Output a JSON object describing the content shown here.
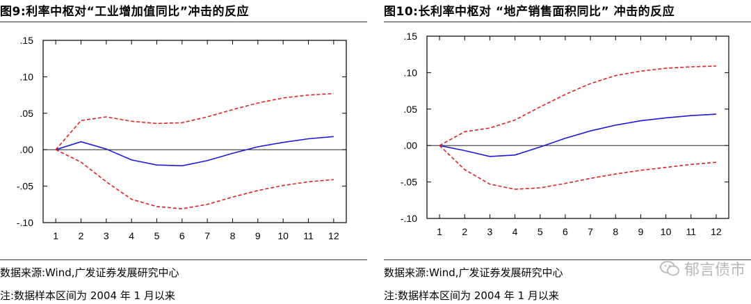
{
  "panels": [
    {
      "title": "图9:利率中枢对“工业增加值同比”冲击的反应",
      "source": "数据来源:Wind,广发证券发展研究中心",
      "note": "注:数据样本区间为 2004 年 1 月以来"
    },
    {
      "title": "图10:长利率中枢对 “地产销售面积同比” 冲击的反应",
      "source": "数据来源:Wind,广发证券发展研究中心",
      "note": "注:数据样本区间为 2004 年 1 月以来"
    }
  ],
  "watermark": {
    "text": "郁言债市"
  },
  "chart_data": [
    {
      "type": "line",
      "title": "利率中枢对“工业增加值同比”冲击的反应",
      "x": [
        1,
        2,
        3,
        4,
        5,
        6,
        7,
        8,
        9,
        10,
        11,
        12
      ],
      "ylim": [
        -0.1,
        0.15
      ],
      "yticks": [
        0.15,
        0.1,
        0.05,
        0.0,
        -0.05,
        -0.1
      ],
      "ytick_labels": [
        ".15",
        ".10",
        ".05",
        ".00",
        "-.05",
        "-.10"
      ],
      "series": [
        {
          "name": "response",
          "style": "solid",
          "color": "#1a1adb",
          "values": [
            0.0,
            0.011,
            0.001,
            -0.014,
            -0.021,
            -0.022,
            -0.015,
            -0.005,
            0.004,
            0.01,
            0.015,
            0.018
          ]
        },
        {
          "name": "upper band",
          "style": "dashed",
          "color": "#e02020",
          "values": [
            0.0,
            0.04,
            0.045,
            0.039,
            0.036,
            0.037,
            0.045,
            0.055,
            0.064,
            0.071,
            0.075,
            0.077
          ]
        },
        {
          "name": "lower band",
          "style": "dashed",
          "color": "#e02020",
          "values": [
            0.0,
            -0.017,
            -0.044,
            -0.068,
            -0.078,
            -0.081,
            -0.075,
            -0.065,
            -0.056,
            -0.049,
            -0.044,
            -0.041
          ]
        }
      ]
    },
    {
      "type": "line",
      "title": "长利率中枢对 “地产销售面积同比” 冲击的反应",
      "x": [
        1,
        2,
        3,
        4,
        5,
        6,
        7,
        8,
        9,
        10,
        11,
        12
      ],
      "ylim": [
        -0.1,
        0.15
      ],
      "yticks": [
        0.15,
        0.1,
        0.05,
        0.0,
        -0.05,
        -0.1
      ],
      "ytick_labels": [
        ".15",
        ".10",
        ".05",
        ".00",
        "-.05",
        "-.10"
      ],
      "series": [
        {
          "name": "response",
          "style": "solid",
          "color": "#1a1adb",
          "values": [
            0.0,
            -0.007,
            -0.015,
            -0.013,
            -0.002,
            0.01,
            0.02,
            0.028,
            0.034,
            0.038,
            0.041,
            0.043
          ]
        },
        {
          "name": "upper band",
          "style": "dashed",
          "color": "#e02020",
          "values": [
            0.0,
            0.019,
            0.024,
            0.035,
            0.053,
            0.07,
            0.085,
            0.096,
            0.102,
            0.106,
            0.108,
            0.109
          ]
        },
        {
          "name": "lower band",
          "style": "dashed",
          "color": "#e02020",
          "values": [
            0.0,
            -0.033,
            -0.053,
            -0.06,
            -0.058,
            -0.052,
            -0.045,
            -0.039,
            -0.034,
            -0.03,
            -0.026,
            -0.023
          ]
        }
      ]
    }
  ]
}
